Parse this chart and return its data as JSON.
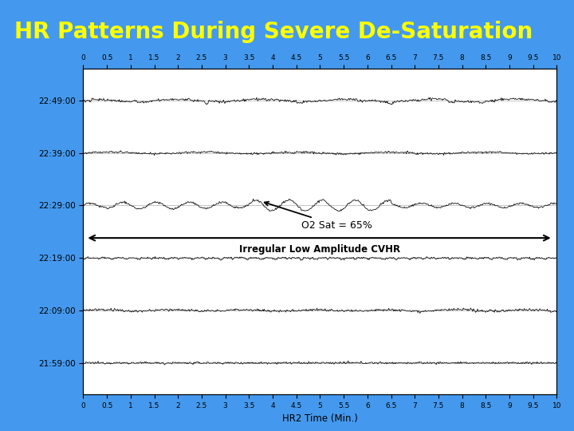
{
  "title": "HR Patterns During Severe De-Saturation",
  "title_color": "#FFFF00",
  "title_fontsize": 20,
  "bg_outer_top": "#4499EE",
  "bg_outer_bottom": "#2266CC",
  "bg_inner": "#FFFFFF",
  "xlabel": "HR2 Time (Min.)",
  "x_ticks": [
    0,
    0.5,
    1,
    1.5,
    2,
    2.5,
    3,
    3.5,
    4,
    4.5,
    5,
    5.5,
    6,
    6.5,
    7,
    7.5,
    8,
    8.5,
    9,
    9.5,
    10
  ],
  "xlim": [
    0,
    10
  ],
  "ytick_labels": [
    "21:59:00",
    "22:09:00",
    "22:19:00",
    "22:29:00",
    "22:39:00",
    "22:49:00"
  ],
  "ytick_positions": [
    0,
    1,
    2,
    3,
    4,
    5
  ],
  "ylim": [
    -0.6,
    5.6
  ],
  "annotation_text": "O2 Sat = 65%",
  "arrow_label": "Irregular Low Amplitude CVHR",
  "line_color": "#000000",
  "border_color": "#888888"
}
